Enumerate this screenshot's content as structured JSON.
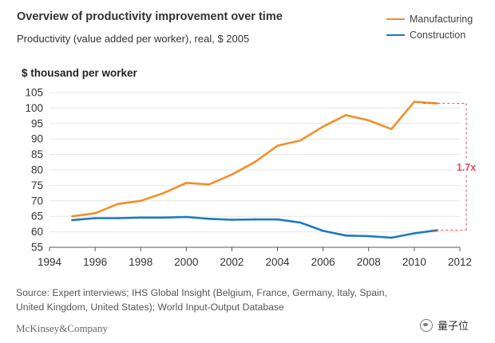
{
  "header": {
    "title": "Overview of productivity improvement over time",
    "subtitle": "Productivity (value added per worker), real, $ 2005"
  },
  "colors": {
    "manufacturing": "#f0902a",
    "construction": "#1a7ac0",
    "annotation": "#e8475f",
    "grid": "#e5e5e5"
  },
  "chart_data": {
    "type": "line",
    "title": "Overview of productivity improvement over time",
    "subtitle": "Productivity (value added per worker), real, $ 2005",
    "xlabel": "",
    "ylabel": "$ thousand per worker",
    "xlim": [
      1994,
      2012
    ],
    "ylim": [
      55,
      105
    ],
    "x_ticks": [
      1994,
      1996,
      1998,
      2000,
      2002,
      2004,
      2006,
      2008,
      2010,
      2012
    ],
    "y_ticks": [
      55,
      60,
      65,
      70,
      75,
      80,
      85,
      90,
      95,
      100,
      105
    ],
    "grid": "horizontal",
    "legend_position": "top-right",
    "series": [
      {
        "name": "Manufacturing",
        "color": "#f0902a",
        "x": [
          1995,
          1996,
          1997,
          1998,
          1999,
          2000,
          2001,
          2002,
          2003,
          2004,
          2005,
          2006,
          2007,
          2008,
          2009,
          2010,
          2011
        ],
        "values": [
          65,
          66,
          69,
          70,
          72.5,
          75.8,
          75.3,
          78.5,
          82.5,
          87.8,
          89.5,
          94,
          97.7,
          96,
          93.2,
          102,
          101.5
        ]
      },
      {
        "name": "Construction",
        "color": "#1a7ac0",
        "x": [
          1995,
          1996,
          1997,
          1998,
          1999,
          2000,
          2001,
          2002,
          2003,
          2004,
          2005,
          2006,
          2007,
          2008,
          2009,
          2010,
          2011
        ],
        "values": [
          63.8,
          64.4,
          64.4,
          64.6,
          64.6,
          64.8,
          64.2,
          63.9,
          64,
          64,
          63,
          60.3,
          58.8,
          58.6,
          58.1,
          59.5,
          60.5
        ]
      }
    ],
    "annotation": {
      "label": "1.7x",
      "from": 60.5,
      "to": 101.5
    }
  },
  "footer": {
    "source_line1": "Source: Expert interviews; IHS Global Insight (Belgium, France, Germany, Italy, Spain,",
    "source_line2": "United Kingdom, United States); World Input-Output Database",
    "brand": "McKinsey&Company",
    "watermark": "量子位"
  }
}
